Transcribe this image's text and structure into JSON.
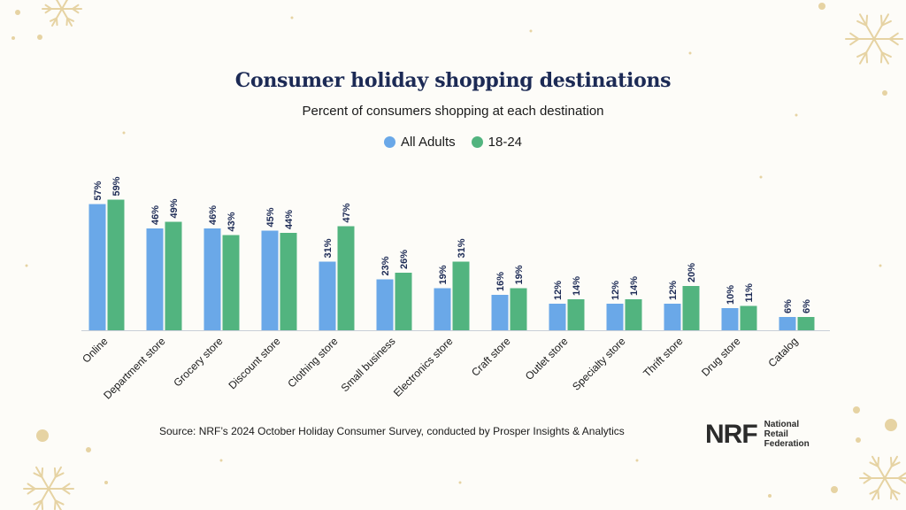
{
  "title": "Consumer holiday shopping destinations",
  "subtitle": "Percent of consumers shopping at each destination",
  "source": "Source: NRF’s 2024 October Holiday Consumer Survey, conducted by Prosper Insights & Analytics",
  "logo": {
    "mark": "NRF",
    "lines": [
      "National",
      "Retail",
      "Federation"
    ]
  },
  "colors": {
    "all_adults": "#6aa8e8",
    "age_18_24": "#52b47f",
    "title": "#1c2a55",
    "value_label": "#1c2a55",
    "decoration": "#e6d3a3"
  },
  "chart_data": {
    "type": "bar",
    "title": "Consumer holiday shopping destinations",
    "subtitle": "Percent of consumers shopping at each destination",
    "categories": [
      "Online",
      "Department store",
      "Grocery store",
      "Discount store",
      "Clothing store",
      "Small business",
      "Electronics store",
      "Craft store",
      "Outlet store",
      "Specialty store",
      "Thrift store",
      "Drug store",
      "Catalog"
    ],
    "series": [
      {
        "name": "All Adults",
        "values": [
          57,
          46,
          46,
          45,
          31,
          23,
          19,
          16,
          12,
          12,
          12,
          10,
          6
        ],
        "labels": [
          "57%",
          "46%",
          "46%",
          "45%",
          "31%",
          "23%",
          "19%",
          "16%",
          "12%",
          "12%",
          "12%",
          "10%",
          "6%"
        ]
      },
      {
        "name": "18-24",
        "values": [
          59,
          49,
          43,
          44,
          47,
          26,
          31,
          19,
          14,
          14,
          20,
          11,
          6
        ],
        "labels": [
          "59%",
          "49%",
          "43%",
          "44%",
          "47%",
          "26%",
          "31%",
          "19%",
          "14%",
          "14%",
          "20%",
          "11%",
          "6%"
        ]
      }
    ],
    "xlabel": "",
    "ylabel": "",
    "ylim": [
      0,
      60
    ],
    "grid": false,
    "legend": "top-center",
    "value_labels": true
  }
}
